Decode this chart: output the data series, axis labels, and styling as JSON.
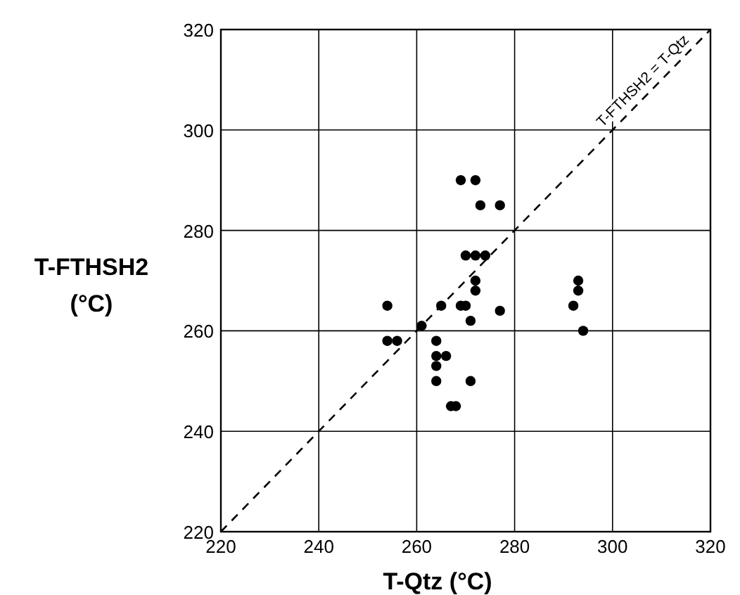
{
  "chart_data": {
    "type": "scatter",
    "xlabel": "T-Qtz (°C)",
    "ylabel": "T-FTHSH2\n(°C)",
    "xlim": [
      220,
      320
    ],
    "ylim": [
      220,
      320
    ],
    "xticks": [
      220,
      240,
      260,
      280,
      300,
      320
    ],
    "yticks": [
      220,
      240,
      260,
      280,
      300,
      320
    ],
    "grid": true,
    "marker": "circle",
    "series": [
      {
        "type": "scatter",
        "color": "#000000",
        "x": [
          269,
          272,
          273,
          277,
          270,
          272,
          274,
          272,
          272,
          292,
          293,
          293,
          294,
          277,
          254,
          265,
          269,
          270,
          271,
          261,
          254,
          256,
          264,
          264,
          266,
          264,
          264,
          271,
          267,
          268
        ],
        "values": [
          290,
          290,
          285,
          285,
          275,
          275,
          275,
          270,
          268,
          265,
          270,
          268,
          260,
          264,
          265,
          265,
          265,
          265,
          262,
          261,
          258,
          258,
          258,
          255,
          255,
          253,
          250,
          250,
          245,
          245
        ]
      },
      {
        "type": "line",
        "color": "#000000",
        "line_style": "dashed",
        "marker": "none",
        "x": [
          220,
          320
        ],
        "values": [
          220,
          320
        ]
      }
    ],
    "annotations": [
      {
        "text": "T-FTHSH2 = T-Qtz",
        "x": 308,
        "y": 308
      }
    ]
  }
}
